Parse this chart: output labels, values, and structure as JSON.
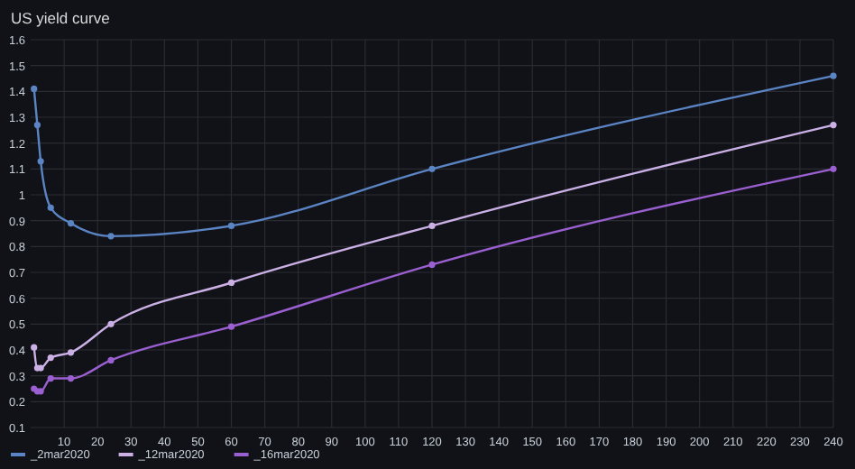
{
  "chart_data": {
    "type": "line",
    "title": "US yield curve",
    "x": [
      1,
      2,
      3,
      6,
      12,
      24,
      60,
      120,
      240
    ],
    "series": [
      {
        "name": "_2mar2020",
        "color": "#5b84c4",
        "values": [
          1.41,
          1.27,
          1.13,
          0.95,
          0.89,
          0.84,
          0.88,
          1.1,
          1.46
        ]
      },
      {
        "name": "_12mar2020",
        "color": "#cbb0e6",
        "values": [
          0.41,
          0.33,
          0.33,
          0.37,
          0.39,
          0.5,
          0.66,
          0.88,
          1.27
        ]
      },
      {
        "name": "_16mar2020",
        "color": "#9a5fd0",
        "values": [
          0.25,
          0.24,
          0.24,
          0.29,
          0.29,
          0.36,
          0.49,
          0.73,
          1.1
        ]
      }
    ],
    "xlim": [
      0,
      240
    ],
    "xticks": [
      10,
      20,
      30,
      40,
      50,
      60,
      70,
      80,
      90,
      100,
      110,
      120,
      130,
      140,
      150,
      160,
      170,
      180,
      190,
      200,
      210,
      220,
      230,
      240
    ],
    "ylim": [
      0.1,
      1.6
    ],
    "yticks": [
      0.1,
      0.2,
      0.3,
      0.4,
      0.5,
      0.6,
      0.7,
      0.8,
      0.9,
      1,
      1.1,
      1.2,
      1.3,
      1.4,
      1.5,
      1.6
    ],
    "grid": true,
    "legend": "bottom left",
    "marker": "circle",
    "line_style": "solid"
  }
}
